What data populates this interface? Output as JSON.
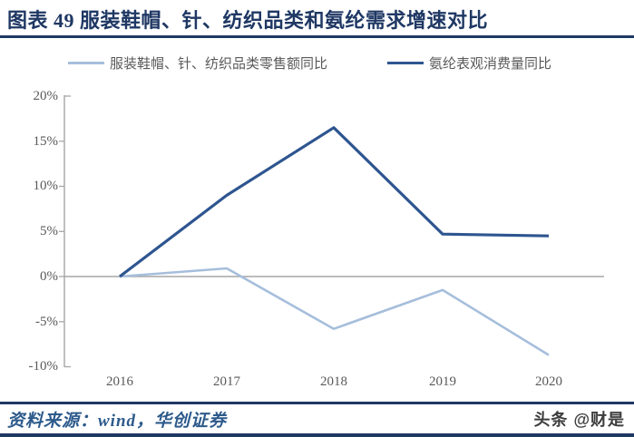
{
  "title": "图表 49 服装鞋帽、针、纺织品类和氨纶需求增速对比",
  "colors": {
    "accent_navy": "#1f3864",
    "series_light_blue": "#a6bedc",
    "series_dark_blue": "#2e5590",
    "axis_gray": "#a6a6a6",
    "label_gray": "#595959",
    "source_text_blue": "#2d5a8b"
  },
  "chart_data": {
    "type": "line",
    "title": "图表 49 服装鞋帽、针、纺织品类和氨纶需求增速对比",
    "categories": [
      "2016",
      "2017",
      "2018",
      "2019",
      "2020"
    ],
    "series": [
      {
        "name": "服装鞋帽、针、纺织品类零售额同比",
        "color": "#a6bedc",
        "values": [
          0,
          0.9,
          -5.8,
          -1.5,
          -8.7
        ]
      },
      {
        "name": "氨纶表观消费量同比",
        "color": "#2e5590",
        "values": [
          0,
          9,
          16.5,
          4.7,
          4.5
        ]
      }
    ],
    "ylim": [
      -10,
      20
    ],
    "ytick_step": 5,
    "ytick_labels": [
      "20%",
      "15%",
      "10%",
      "5%",
      "0%",
      "-5%",
      "-10%"
    ],
    "xlabel": "",
    "ylabel": "",
    "legend_position": "top",
    "grid": "zero-line-only"
  },
  "footer": {
    "source": "资料来源：wind，华创证券",
    "watermark": "头条 @财是"
  }
}
